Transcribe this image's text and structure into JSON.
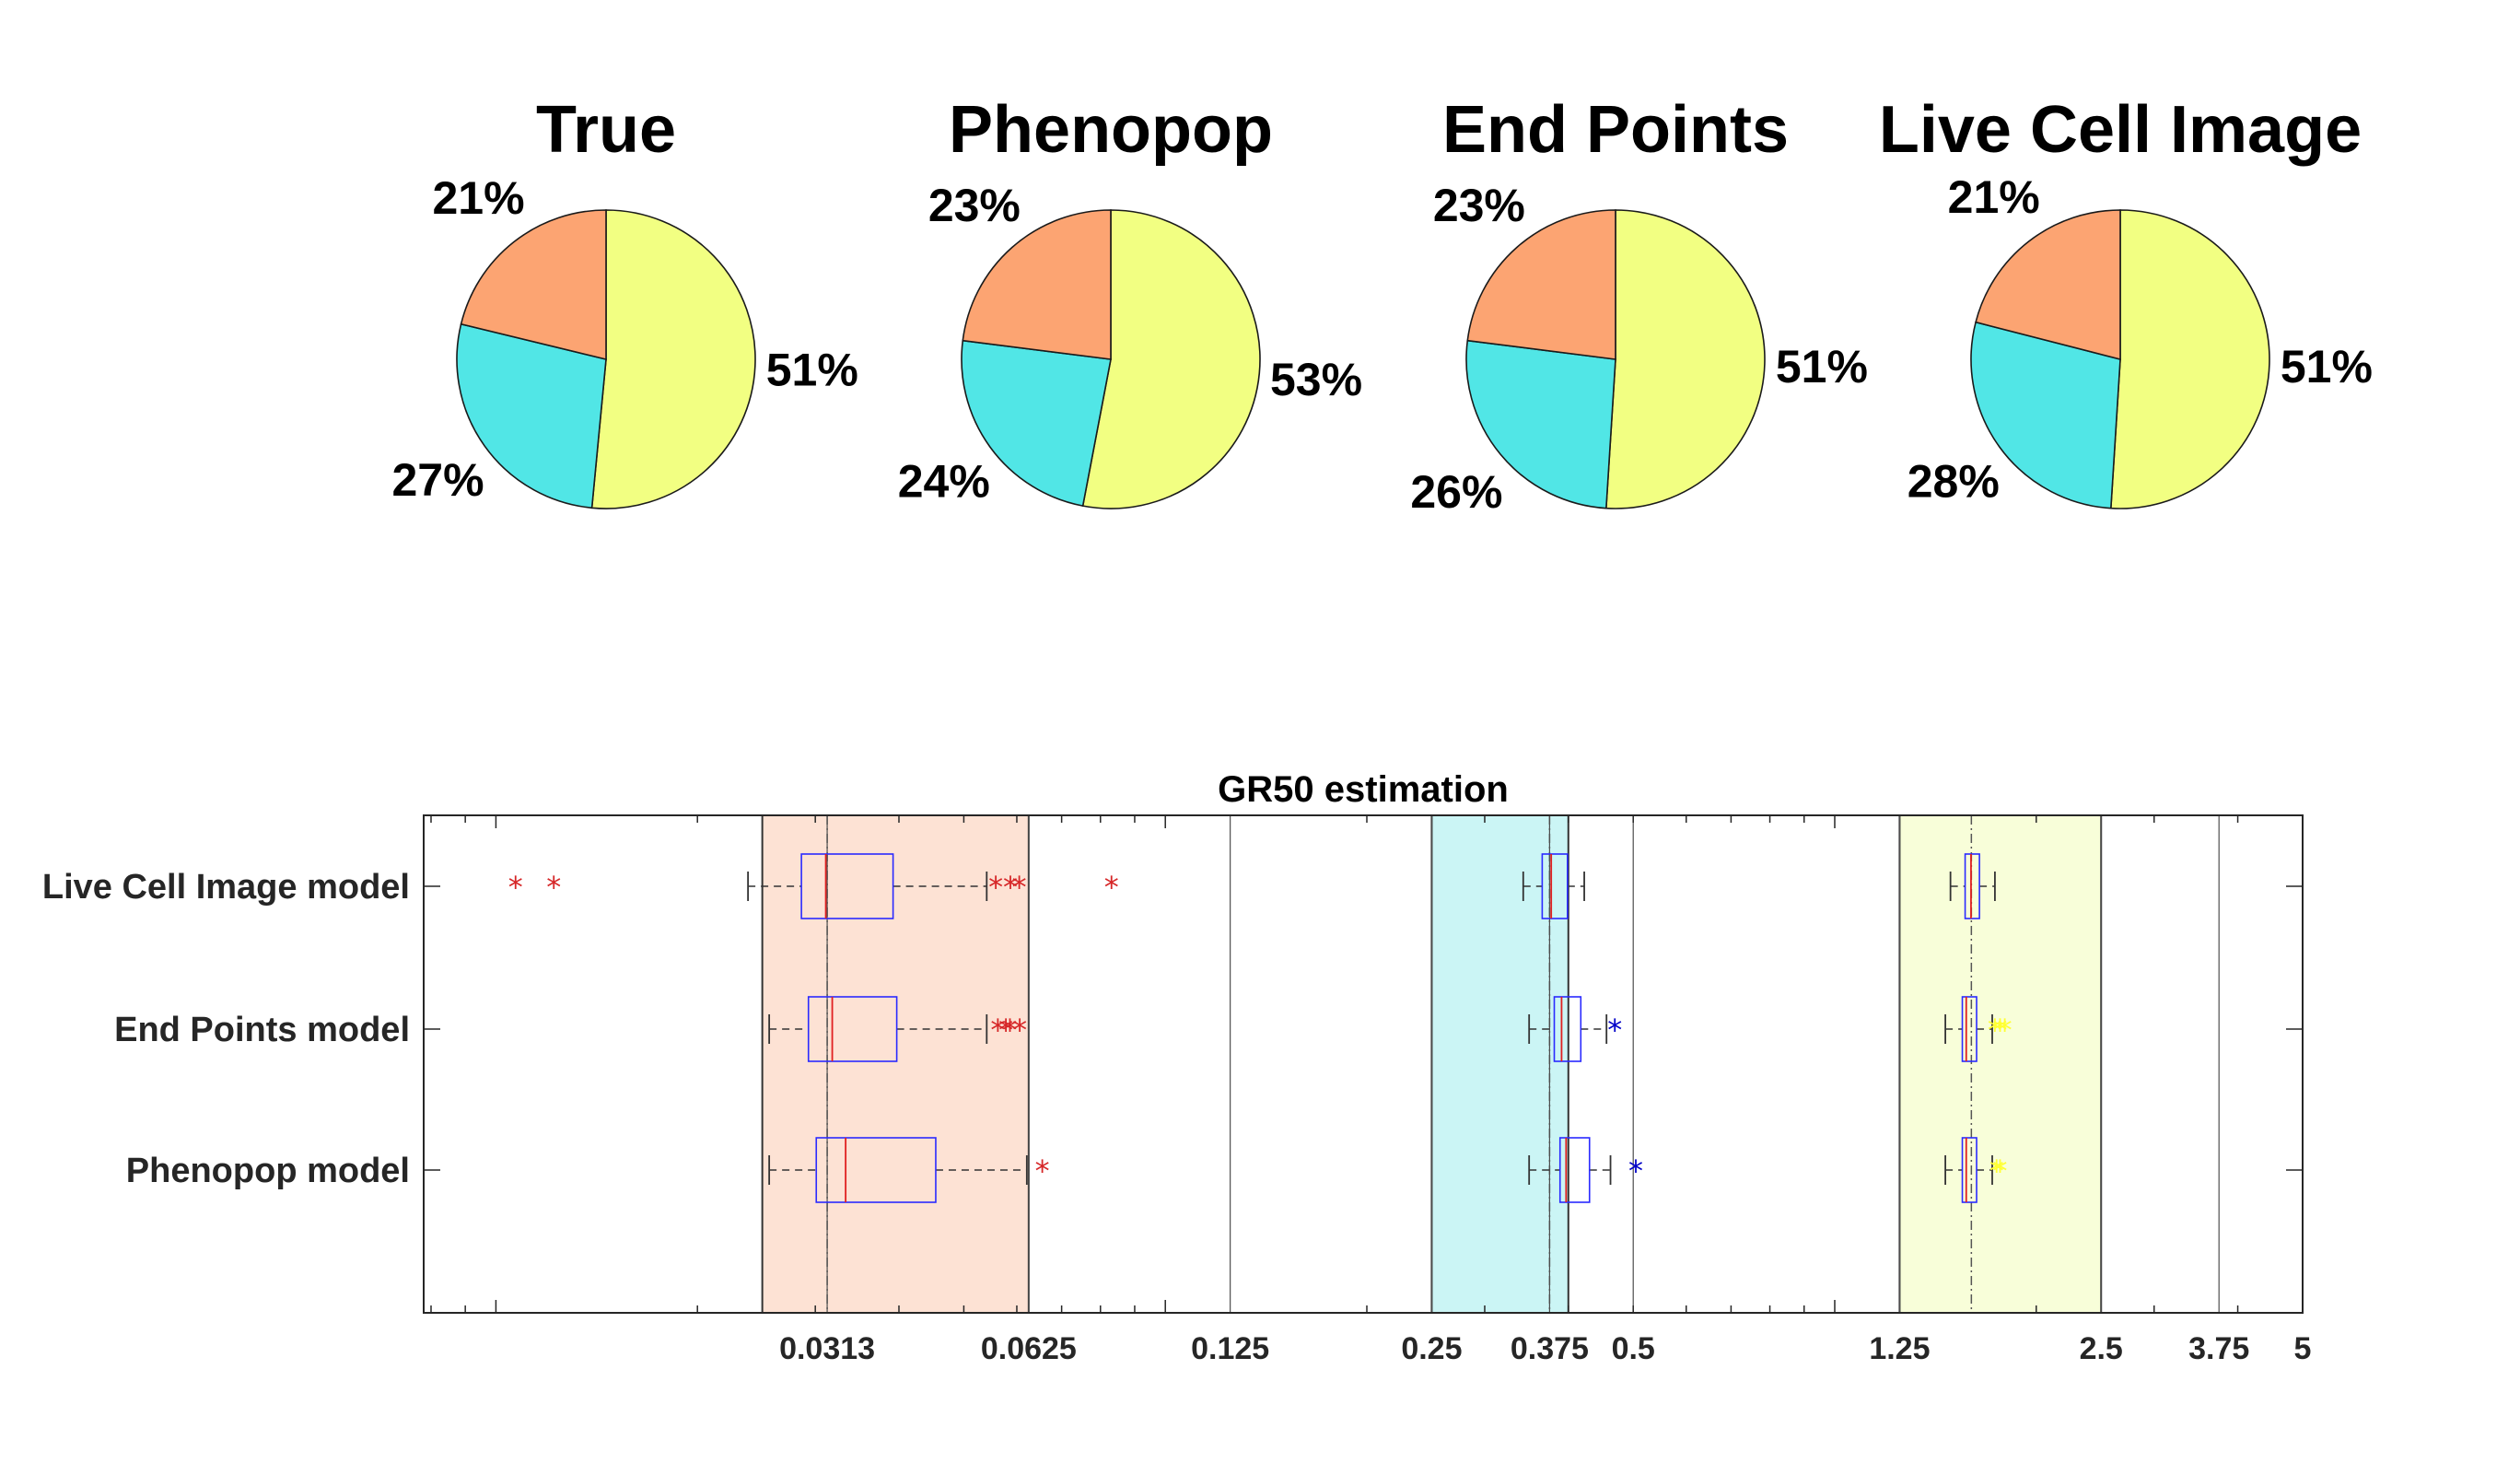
{
  "chart_data": [
    {
      "type": "pie",
      "title": "True",
      "slices": [
        {
          "label": "51%",
          "value": 51,
          "color": "#f2ff82"
        },
        {
          "label": "27%",
          "value": 27,
          "color": "#51e6e6"
        },
        {
          "label": "21%",
          "value": 21,
          "color": "#fca472"
        }
      ]
    },
    {
      "type": "pie",
      "title": "Phenopop",
      "slices": [
        {
          "label": "53%",
          "value": 53,
          "color": "#f2ff82"
        },
        {
          "label": "24%",
          "value": 24,
          "color": "#51e6e6"
        },
        {
          "label": "23%",
          "value": 23,
          "color": "#fca472"
        }
      ]
    },
    {
      "type": "pie",
      "title": "End Points",
      "slices": [
        {
          "label": "51%",
          "value": 51,
          "color": "#f2ff82"
        },
        {
          "label": "26%",
          "value": 26,
          "color": "#51e6e6"
        },
        {
          "label": "23%",
          "value": 23,
          "color": "#fca472"
        }
      ]
    },
    {
      "type": "pie",
      "title": "Live Cell Image",
      "slices": [
        {
          "label": "51%",
          "value": 51,
          "color": "#f2ff82"
        },
        {
          "label": "28%",
          "value": 28,
          "color": "#51e6e6"
        },
        {
          "label": "21%",
          "value": 21,
          "color": "#fca472"
        }
      ]
    },
    {
      "type": "box",
      "title": "GR50 estimation",
      "x_scale": "log",
      "xlim": [
        0.0078,
        5
      ],
      "x_ticks": [
        {
          "label": "0.0313",
          "value": 0.03125
        },
        {
          "label": "0.0625",
          "value": 0.0625
        },
        {
          "label": "0.125",
          "value": 0.125
        },
        {
          "label": "0.25",
          "value": 0.25
        },
        {
          "label": "0.375",
          "value": 0.375
        },
        {
          "label": "0.5",
          "value": 0.5
        },
        {
          "label": "1.25",
          "value": 1.25
        },
        {
          "label": "2.5",
          "value": 2.5
        },
        {
          "label": "3.75",
          "value": 3.75
        },
        {
          "label": "5",
          "value": 5
        }
      ],
      "grid": "vertical lines at tick values",
      "shaded_bands": [
        {
          "range": [
            0.025,
            0.0625
          ],
          "color": "#fde2d4",
          "true_value": 0.03125
        },
        {
          "range": [
            0.25,
            0.4
          ],
          "color": "#cbf5f5",
          "true_value": 0.375
        },
        {
          "range": [
            1.25,
            2.5
          ],
          "color": "#f8fed9",
          "true_value": 1.6
        }
      ],
      "categories": [
        "Live Cell Image model",
        "End Points model",
        "Phenopop model"
      ],
      "series": [
        {
          "category": "Live Cell Image model",
          "groups": [
            {
              "whisker_low": 0.0238,
              "q1": 0.0286,
              "median": 0.0311,
              "q3": 0.0392,
              "whisker_high": 0.0541,
              "outliers": [
                0.0107,
                0.0122,
                0.0558,
                0.0587,
                0.0605,
                0.0831
              ],
              "outlier_color": "#d62728"
            },
            {
              "whisker_low": 0.3425,
              "q1": 0.3656,
              "median": 0.3771,
              "q3": 0.3988,
              "whisker_high": 0.4225,
              "outliers": []
            },
            {
              "whisker_low": 1.489,
              "q1": 1.566,
              "median": 1.598,
              "q3": 1.645,
              "whisker_high": 1.735,
              "outliers": []
            }
          ]
        },
        {
          "category": "End Points model",
          "groups": [
            {
              "whisker_low": 0.0256,
              "q1": 0.0293,
              "median": 0.0318,
              "q3": 0.0397,
              "whisker_high": 0.0541,
              "outliers": [
                0.0562,
                0.0578,
                0.0586,
                0.0606
              ],
              "outlier_color": "#d62728"
            },
            {
              "whisker_low": 0.3495,
              "q1": 0.3811,
              "median": 0.3908,
              "q3": 0.4175,
              "whisker_high": 0.4561,
              "outliers": [
                0.4694
              ],
              "outlier_color": "#0000c8"
            },
            {
              "whisker_low": 1.463,
              "q1": 1.551,
              "median": 1.572,
              "q3": 1.629,
              "whisker_high": 1.719,
              "outliers": [
                1.735,
                1.766,
                1.795
              ],
              "outlier_color": "#ffff33"
            }
          ]
        },
        {
          "category": "Phenopop model",
          "groups": [
            {
              "whisker_low": 0.0256,
              "q1": 0.0301,
              "median": 0.0333,
              "q3": 0.0454,
              "whisker_high": 0.0621,
              "outliers": [
                0.0655
              ],
              "outlier_color": "#d62728"
            },
            {
              "whisker_low": 0.3495,
              "q1": 0.3887,
              "median": 0.3969,
              "q3": 0.4302,
              "whisker_high": 0.4624,
              "outliers": [
                0.5045
              ],
              "outlier_color": "#0000c8"
            },
            {
              "whisker_low": 1.463,
              "q1": 1.551,
              "median": 1.572,
              "q3": 1.629,
              "whisker_high": 1.719,
              "outliers": [
                1.745,
                1.766
              ],
              "outlier_color": "#ffff33"
            }
          ]
        }
      ]
    }
  ]
}
